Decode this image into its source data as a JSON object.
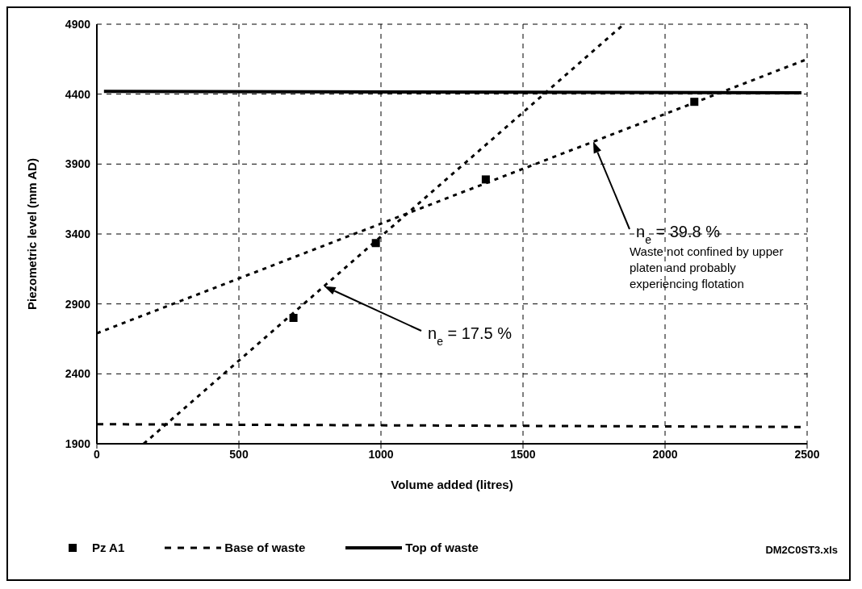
{
  "chart_data": {
    "type": "line",
    "xlabel": "Volume added (litres)",
    "ylabel": "Piezometric level (mm AD)",
    "xlim": [
      0,
      2500
    ],
    "xticks": [
      0,
      500,
      1000,
      1500,
      2000,
      2500
    ],
    "ylim": [
      1900,
      4900
    ],
    "yticks": [
      1900,
      2400,
      2900,
      3400,
      3900,
      4400,
      4900
    ],
    "grid": true,
    "legend": "bottom",
    "series": [
      {
        "name": "Pz A1",
        "type": "scatter",
        "marker": "square",
        "color": "#000000",
        "x": [
          692,
          982,
          1369,
          2103
        ],
        "values": [
          2800,
          3335,
          3790,
          4345
        ]
      },
      {
        "name": "Base of waste",
        "line_style": "dashed",
        "marker": "none",
        "color": "#000000",
        "x": [
          0,
          2500
        ],
        "values": [
          2040,
          2020
        ]
      },
      {
        "name": "Top of waste",
        "line_style": "solid",
        "marker": "none",
        "color": "#000000",
        "x": [
          25,
          2480
        ],
        "values": [
          4420,
          4410
        ]
      },
      {
        "line_style": "dotted",
        "marker": "none",
        "color": "#000000",
        "x": [
          165,
          1855
        ],
        "values": [
          1900,
          4900
        ]
      },
      {
        "line_style": "dotted",
        "marker": "none",
        "color": "#000000",
        "x": [
          0,
          2500
        ],
        "values": [
          2690,
          4650
        ]
      }
    ],
    "annotations": [
      "n$_{e}$ = 17.5 %",
      "n$_{e}$ = 39.8 %",
      "Waste not confined by upper platen and probably experiencing flotation",
      "DM2C0ST3.xls"
    ]
  }
}
